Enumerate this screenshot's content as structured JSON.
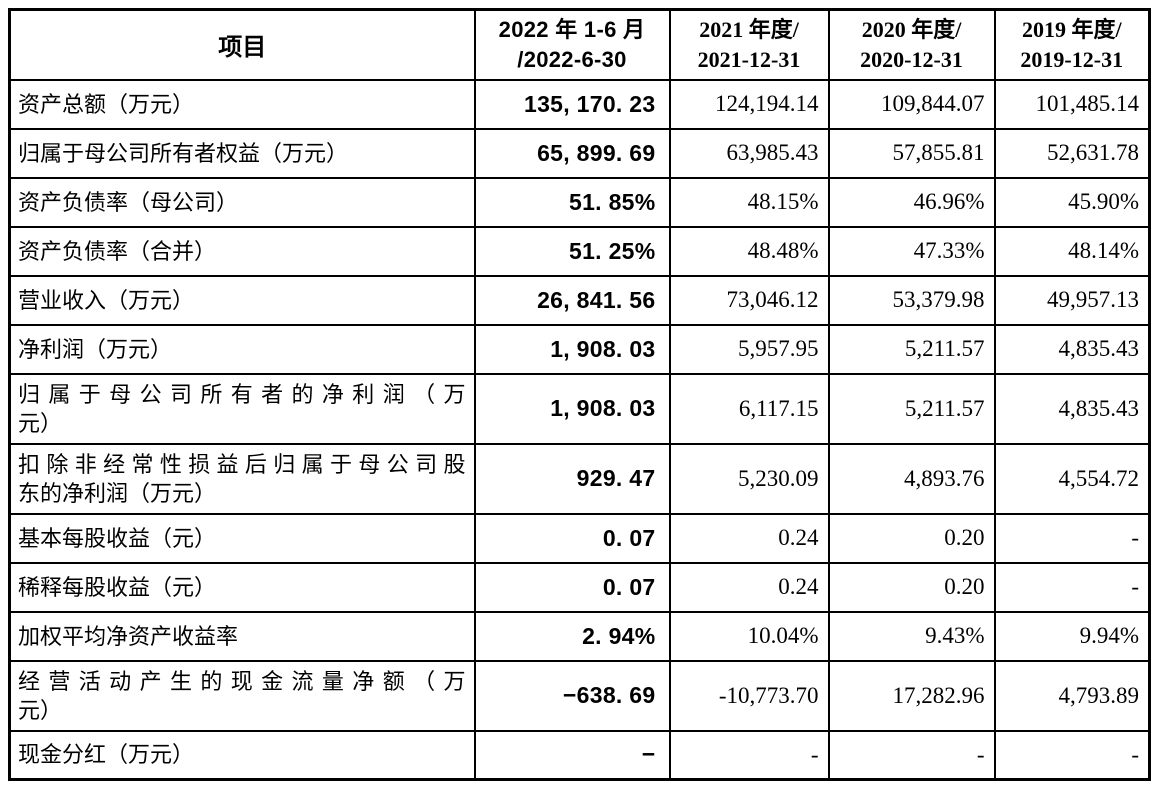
{
  "page": {
    "background_color": "#ffffff",
    "border_color": "#000000",
    "text_color": "#000000"
  },
  "table": {
    "header": {
      "item_label": "项目",
      "periods": [
        {
          "line1": "2022 年 1-6 月",
          "line2": "/2022-6-30"
        },
        {
          "line1": "2021 年度/",
          "line2": "2021-12-31"
        },
        {
          "line1": "2020 年度/",
          "line2": "2020-12-31"
        },
        {
          "line1": "2019 年度/",
          "line2": "2019-12-31"
        }
      ]
    },
    "rows": [
      {
        "item_lines": [
          "资产总额（万元）"
        ],
        "values": [
          "135, 170. 23",
          "124,194.14",
          "109,844.07",
          "101,485.14"
        ]
      },
      {
        "item_lines": [
          "归属于母公司所有者权益（万元）"
        ],
        "values": [
          "65, 899. 69",
          "63,985.43",
          "57,855.81",
          "52,631.78"
        ]
      },
      {
        "item_lines": [
          "资产负债率（母公司）"
        ],
        "values": [
          "51. 85%",
          "48.15%",
          "46.96%",
          "45.90%"
        ]
      },
      {
        "item_lines": [
          "资产负债率（合并）"
        ],
        "values": [
          "51. 25%",
          "48.48%",
          "47.33%",
          "48.14%"
        ]
      },
      {
        "item_lines": [
          "营业收入（万元）"
        ],
        "values": [
          "26, 841. 56",
          "73,046.12",
          "53,379.98",
          "49,957.13"
        ]
      },
      {
        "item_lines": [
          "净利润（万元）"
        ],
        "values": [
          "1, 908. 03",
          "5,957.95",
          "5,211.57",
          "4,835.43"
        ]
      },
      {
        "item_lines": [
          "归属于母公司所有者的净利润（万",
          "元）"
        ],
        "values": [
          "1, 908. 03",
          "6,117.15",
          "5,211.57",
          "4,835.43"
        ]
      },
      {
        "item_lines": [
          "扣除非经常性损益后归属于母公司股",
          "东的净利润（万元）"
        ],
        "values": [
          "929. 47",
          "5,230.09",
          "4,893.76",
          "4,554.72"
        ]
      },
      {
        "item_lines": [
          "基本每股收益（元）"
        ],
        "values": [
          "0. 07",
          "0.24",
          "0.20",
          "-"
        ]
      },
      {
        "item_lines": [
          "稀释每股收益（元）"
        ],
        "values": [
          "0. 07",
          "0.24",
          "0.20",
          "-"
        ]
      },
      {
        "item_lines": [
          "加权平均净资产收益率"
        ],
        "values": [
          "2. 94%",
          "10.04%",
          "9.43%",
          "9.94%"
        ]
      },
      {
        "item_lines": [
          "经营活动产生的现金流量净额（万",
          "元）"
        ],
        "values": [
          "−638. 69",
          "-10,773.70",
          "17,282.96",
          "4,793.89"
        ]
      },
      {
        "item_lines": [
          "现金分红（万元）"
        ],
        "values": [
          "−",
          "-",
          "-",
          "-"
        ]
      }
    ]
  }
}
